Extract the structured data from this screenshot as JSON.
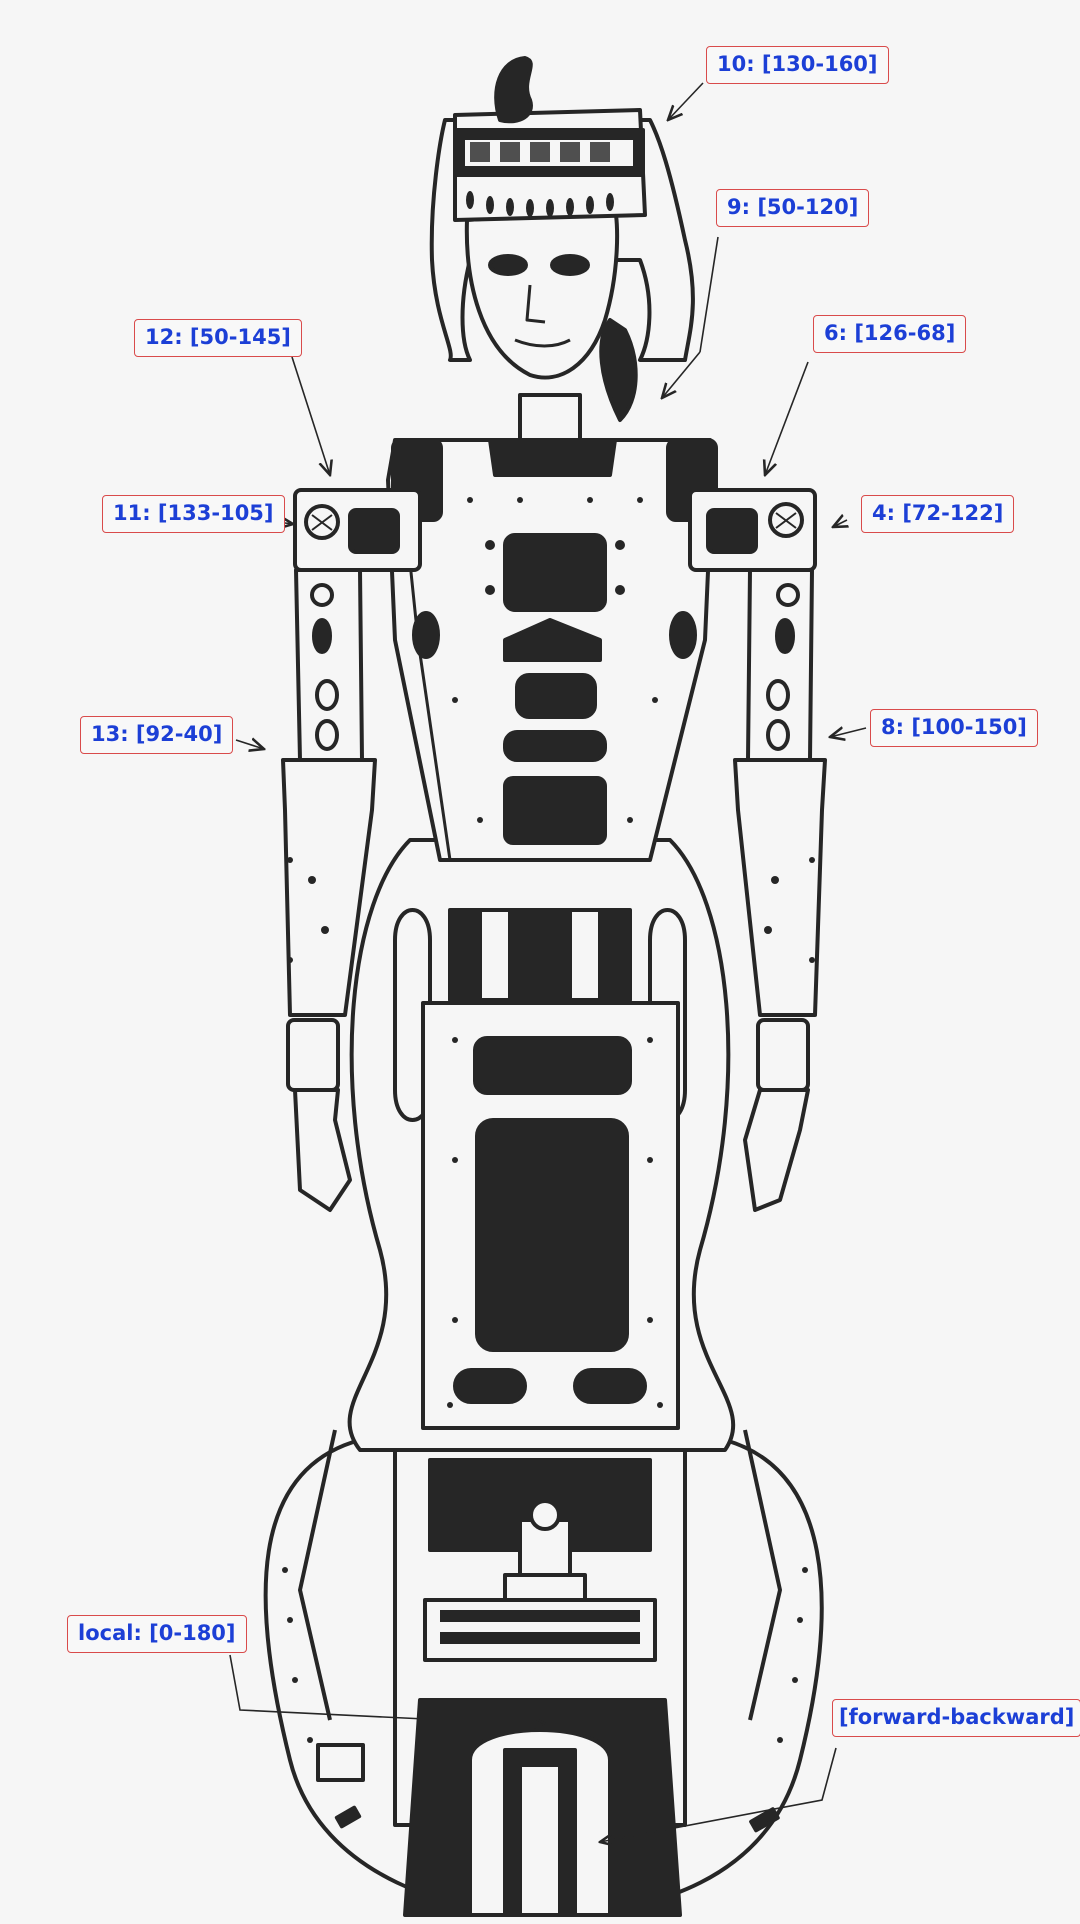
{
  "colors": {
    "label_text": "#1c3fd6",
    "label_border": "#d94b4b",
    "line_art": "#262626",
    "background": "#f6f6f6"
  },
  "labels": {
    "j10": "10: [130-160]",
    "j9": "9: [50-120]",
    "j12": "12: [50-145]",
    "j6": "6: [126-68]",
    "j11": "11: [133-105]",
    "j4": "4: [72-122]",
    "j13": "13: [92-40]",
    "j8": "8: [100-150]",
    "local": "local: [0-180]",
    "base": "[forward-backward]"
  }
}
